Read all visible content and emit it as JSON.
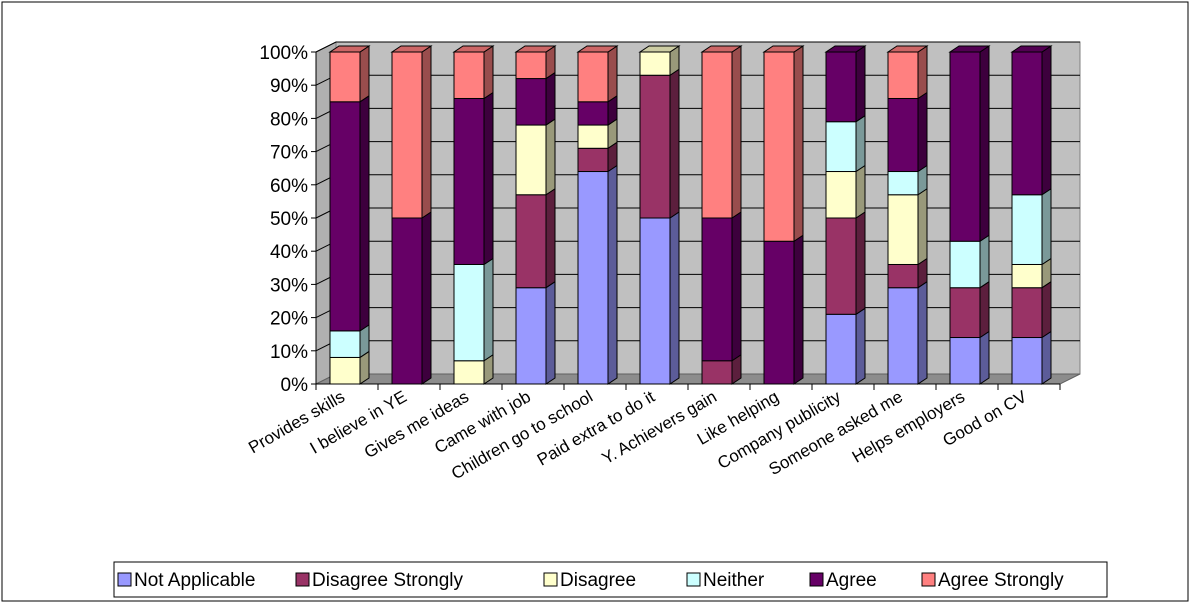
{
  "chart_data": {
    "type": "bar",
    "stacked": true,
    "three_d": true,
    "legend_position": "bottom",
    "grid": true,
    "ylim": [
      0,
      100
    ],
    "y_ticks": [
      "0%",
      "10%",
      "20%",
      "30%",
      "40%",
      "50%",
      "60%",
      "70%",
      "80%",
      "90%",
      "100%"
    ],
    "categories": [
      "Provides skills",
      "I believe in YE",
      "Gives me ideas",
      "Came with job",
      "Children go to school",
      "Paid extra to do it",
      "Y. Achievers gain",
      "Like helping",
      "Company publicity",
      "Someone asked me",
      "Helps employers",
      "Good on CV"
    ],
    "series": [
      {
        "name": "Not Applicable",
        "color": "#9999ff",
        "values": [
          0,
          0,
          0,
          29,
          64,
          50,
          0,
          0,
          21,
          29,
          14,
          14
        ]
      },
      {
        "name": "Disagree Strongly",
        "color": "#993366",
        "values": [
          0,
          0,
          0,
          28,
          7,
          43,
          7,
          0,
          29,
          7,
          15,
          15
        ]
      },
      {
        "name": "Disagree",
        "color": "#ffffcc",
        "values": [
          8,
          0,
          7,
          21,
          7,
          7,
          0,
          0,
          14,
          21,
          0,
          7
        ]
      },
      {
        "name": "Neither",
        "color": "#ccffff",
        "values": [
          8,
          0,
          29,
          0,
          0,
          0,
          0,
          0,
          15,
          7,
          14,
          21
        ]
      },
      {
        "name": "Agree",
        "color": "#660066",
        "values": [
          69,
          50,
          50,
          14,
          7,
          0,
          43,
          43,
          21,
          22,
          57,
          43
        ]
      },
      {
        "name": "Agree Strongly",
        "color": "#ff8080",
        "values": [
          15,
          50,
          14,
          8,
          15,
          0,
          50,
          57,
          0,
          14,
          0,
          0
        ]
      }
    ]
  }
}
